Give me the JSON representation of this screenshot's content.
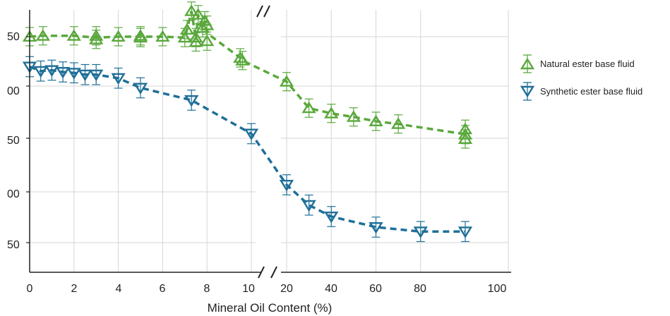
{
  "chart_data": {
    "type": "scatter",
    "xlabel": "Mineral Oil Content (%)",
    "y_tick_labels": [
      "50",
      "00",
      "50",
      "00",
      "50"
    ],
    "x_tick_labels_left": [
      "0",
      "2",
      "4",
      "6",
      "8",
      "10"
    ],
    "x_tick_labels_right": [
      "20",
      "40",
      "60",
      "80",
      "100"
    ],
    "x_axis_break": "10-20",
    "grid": true,
    "legend_position": "right",
    "series": [
      {
        "name": "Natural ester base fluid",
        "color": "#5aa83c",
        "marker": "triangle-up",
        "line_style": "dashed",
        "points": [
          {
            "x": 0,
            "y": 56,
            "err": 4
          },
          {
            "x": 0.6,
            "y": 57,
            "err": 4
          },
          {
            "x": 2,
            "y": 57,
            "err": 4
          },
          {
            "x": 3,
            "y": 57,
            "err": 4
          },
          {
            "x": 3,
            "y": 53,
            "err": 4
          },
          {
            "x": 4,
            "y": 56,
            "err": 4
          },
          {
            "x": 5,
            "y": 57,
            "err": 4
          },
          {
            "x": 5,
            "y": 55,
            "err": 4
          },
          {
            "x": 6,
            "y": 56,
            "err": 4
          },
          {
            "x": 7,
            "y": 55,
            "err": 4
          },
          {
            "x": 7.5,
            "y": 55,
            "err": 4
          },
          {
            "x": 7.5,
            "y": 50,
            "err": 4
          },
          {
            "x": 7.3,
            "y": 85,
            "err": 4
          },
          {
            "x": 7.6,
            "y": 81,
            "err": 4
          },
          {
            "x": 7.9,
            "y": 74,
            "err": 4
          },
          {
            "x": 7.8,
            "y": 66,
            "err": 4
          },
          {
            "x": 8,
            "y": 69,
            "err": 4
          },
          {
            "x": 7.1,
            "y": 64,
            "err": 4
          },
          {
            "x": 8,
            "y": 51,
            "err": 4
          },
          {
            "x": 9.5,
            "y": 32,
            "err": 4
          },
          {
            "x": 9.6,
            "y": 29,
            "err": 4
          },
          {
            "x": 20,
            "y": 5,
            "err": 4
          },
          {
            "x": 30,
            "y": -25,
            "err": 4
          },
          {
            "x": 40,
            "y": -31,
            "err": 4
          },
          {
            "x": 50,
            "y": -35,
            "err": 4
          },
          {
            "x": 60,
            "y": -40,
            "err": 4
          },
          {
            "x": 70,
            "y": -43,
            "err": 4
          },
          {
            "x": 100,
            "y": -49,
            "err": 4
          },
          {
            "x": 100,
            "y": -55,
            "err": 4
          },
          {
            "x": 100,
            "y": -60,
            "err": 4
          }
        ]
      },
      {
        "name": "Synthetic ester base fluid",
        "color": "#1f6f98",
        "marker": "triangle-down",
        "line_style": "dashed",
        "points": [
          {
            "x": 0,
            "y": 22,
            "err": 5
          },
          {
            "x": 0.5,
            "y": 17,
            "err": 5
          },
          {
            "x": 1,
            "y": 18,
            "err": 5
          },
          {
            "x": 1.5,
            "y": 16,
            "err": 5
          },
          {
            "x": 2,
            "y": 15,
            "err": 5
          },
          {
            "x": 2.5,
            "y": 13,
            "err": 5
          },
          {
            "x": 3,
            "y": 13,
            "err": 5
          },
          {
            "x": 4,
            "y": 9,
            "err": 5
          },
          {
            "x": 5,
            "y": -2,
            "err": 5
          },
          {
            "x": 7.3,
            "y": -16,
            "err": 5
          },
          {
            "x": 10,
            "y": -54,
            "err": 5
          },
          {
            "x": 20,
            "y": -112,
            "err": 5
          },
          {
            "x": 30,
            "y": -135,
            "err": 5
          },
          {
            "x": 40,
            "y": -148,
            "err": 5
          },
          {
            "x": 60,
            "y": -160,
            "err": 5
          },
          {
            "x": 80,
            "y": -165,
            "err": 5
          },
          {
            "x": 100,
            "y": -165,
            "err": 5
          }
        ]
      }
    ]
  }
}
